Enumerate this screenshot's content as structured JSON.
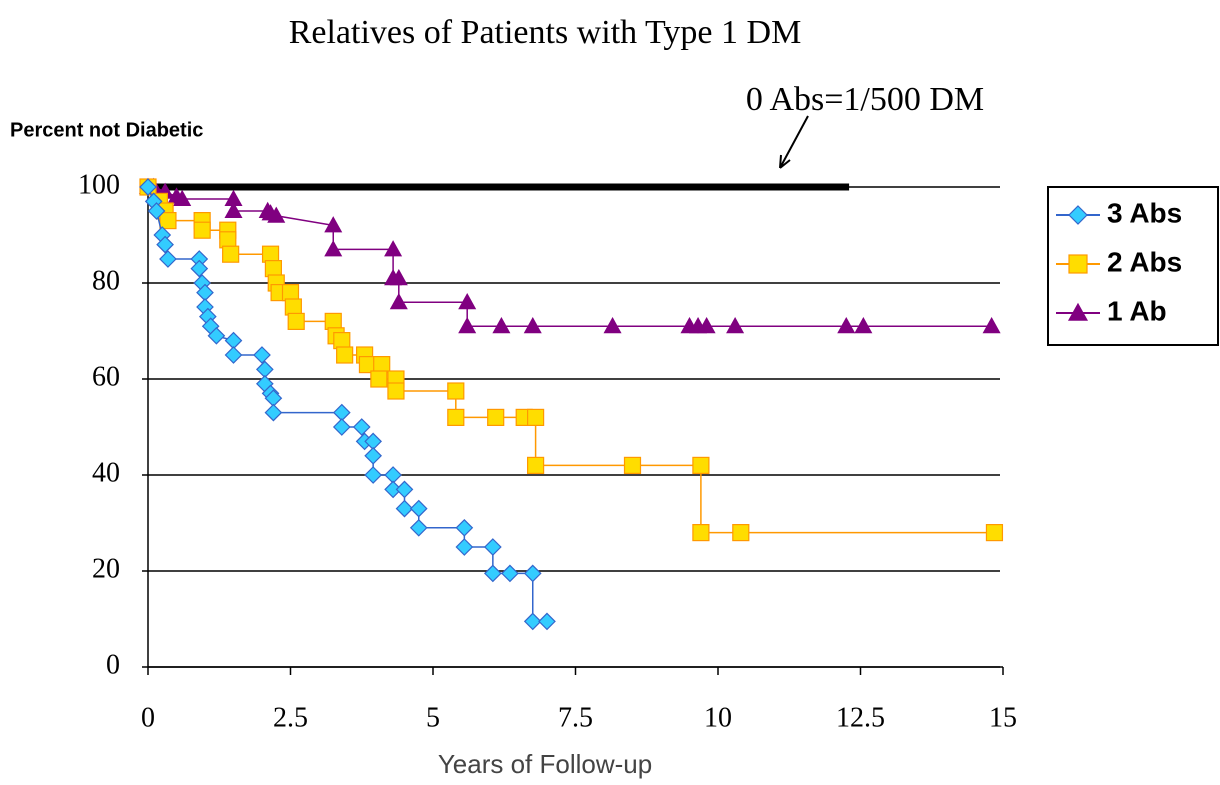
{
  "chart_data": {
    "type": "line",
    "title": "Relatives of Patients with Type 1 DM",
    "y_label": "Percent not Diabetic",
    "x_label": "Years of Follow-up",
    "annotation": "0 Abs=1/500 DM",
    "reference_line": {
      "x": [
        0,
        12.3
      ],
      "values": [
        100,
        100
      ],
      "color": "#000000"
    },
    "xlim": [
      0,
      15
    ],
    "ylim": [
      0,
      100
    ],
    "xticks": [
      0,
      2.5,
      5,
      7.5,
      10,
      12.5,
      15
    ],
    "yticks": [
      0,
      20,
      40,
      60,
      80,
      100
    ],
    "grid": true,
    "legend": "right",
    "series": [
      {
        "name": "3 Abs",
        "color": "#3366cc",
        "marker_color": "#33ccff",
        "marker": "diamond",
        "x": [
          0,
          0.1,
          0.15,
          0.25,
          0.3,
          0.35,
          0.9,
          0.9,
          0.95,
          1.0,
          1.0,
          1.05,
          1.1,
          1.2,
          1.5,
          1.5,
          2.0,
          2.05,
          2.05,
          2.15,
          2.2,
          2.2,
          3.4,
          3.4,
          3.75,
          3.8,
          3.95,
          3.95,
          3.95,
          4.3,
          4.3,
          4.5,
          4.5,
          4.75,
          4.75,
          5.55,
          5.55,
          6.05,
          6.05,
          6.35,
          6.75,
          6.75,
          7.0
        ],
        "values": [
          100,
          97,
          95,
          90,
          88,
          85,
          85,
          83,
          80,
          78,
          75,
          73,
          71,
          69,
          68,
          65,
          65,
          62,
          59,
          57,
          56,
          53,
          53,
          50,
          50,
          47,
          47,
          44,
          40,
          40,
          37,
          37,
          33,
          33,
          29,
          29,
          25,
          25,
          19.5,
          19.5,
          19.5,
          9.5,
          9.5
        ]
      },
      {
        "name": "2 Abs",
        "color": "#ff9900",
        "marker_color": "#ffdd00",
        "marker": "square",
        "x": [
          0,
          0.2,
          0.3,
          0.35,
          0.95,
          0.95,
          1.4,
          1.4,
          1.45,
          2.15,
          2.2,
          2.25,
          2.3,
          2.5,
          2.55,
          2.6,
          3.25,
          3.3,
          3.4,
          3.45,
          3.8,
          3.85,
          4.1,
          4.05,
          4.35,
          4.35,
          5.4,
          5.4,
          6.1,
          6.6,
          6.8,
          6.8,
          8.5,
          9.7,
          9.7,
          10.4,
          14.85
        ],
        "values": [
          100,
          97,
          95,
          93,
          93,
          91,
          91,
          89,
          86,
          86,
          83,
          80,
          78,
          78,
          75,
          72,
          72,
          69,
          68,
          65,
          65,
          63,
          63,
          60,
          60,
          57.5,
          57.5,
          52,
          52,
          52,
          52,
          42,
          42,
          42,
          28,
          28,
          28
        ]
      },
      {
        "name": "1 Ab",
        "color": "#800080",
        "marker_color": "#800080",
        "marker": "triangle",
        "x": [
          0,
          0.1,
          0.3,
          0.5,
          0.6,
          1.5,
          1.5,
          2.1,
          2.15,
          2.25,
          3.25,
          3.25,
          4.3,
          4.3,
          4.4,
          4.4,
          5.6,
          5.6,
          6.2,
          6.75,
          8.15,
          9.5,
          9.65,
          9.8,
          10.3,
          12.25,
          12.55,
          14.8
        ],
        "values": [
          100,
          100,
          99,
          98,
          97.5,
          97.5,
          95,
          95,
          94.5,
          94,
          92,
          87,
          87,
          81,
          81,
          76,
          76,
          71,
          71,
          71,
          71,
          71,
          71,
          71,
          71,
          71,
          71,
          71
        ]
      }
    ]
  }
}
